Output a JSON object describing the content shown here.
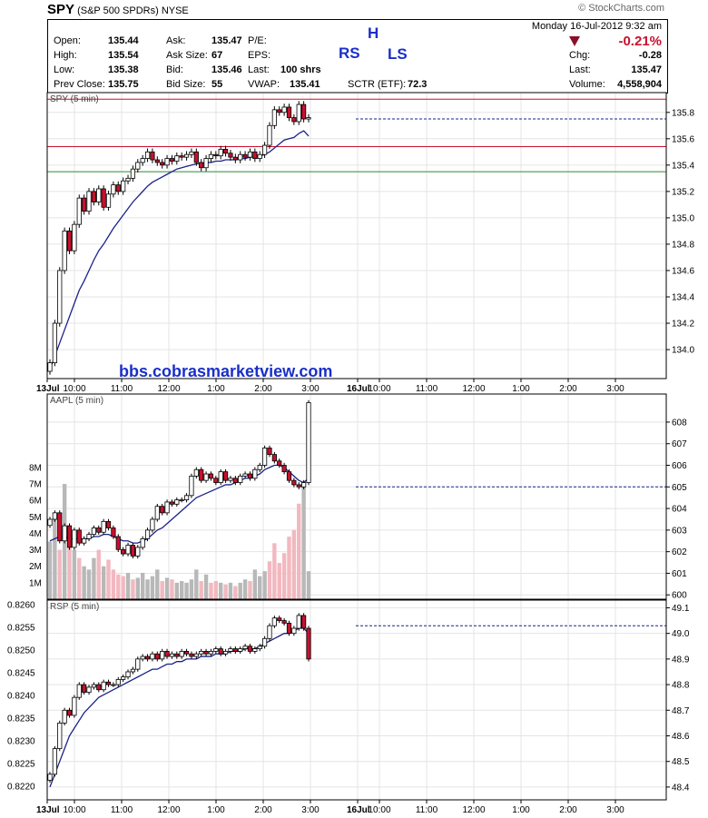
{
  "header": {
    "symbol": "SPY",
    "name": "(S&P 500 SPDRs)",
    "exchange": "NYSE",
    "brand": "© StockCharts.com"
  },
  "quote": {
    "open_label": "Open:",
    "open": "135.44",
    "high_label": "High:",
    "high": "135.54",
    "low_label": "Low:",
    "low": "135.38",
    "prev_label": "Prev Close:",
    "prev": "135.75",
    "ask_label": "Ask:",
    "ask": "135.47",
    "asksize_label": "Ask Size:",
    "asksize": "67",
    "bid_label": "Bid:",
    "bid": "135.46",
    "bidsize_label": "Bid Size:",
    "bidsize": "55",
    "pe_label": "P/E:",
    "eps_label": "EPS:",
    "last_label": "Last:",
    "last_shrs": "100 shrs",
    "vwap_label": "VWAP:",
    "vwap": "135.41",
    "sctr_label": "SCTR (ETF):",
    "sctr": "72.3",
    "annot_rs": "RS",
    "annot_h": "H",
    "annot_ls": "LS",
    "date": "Monday  16-Jul-2012  9:32 am",
    "pct": "-0.21%",
    "chg_label": "Chg:",
    "chg": "-0.28",
    "last2_label": "Last:",
    "last2": "135.47",
    "volume_label": "Volume:",
    "volume": "4,558,904",
    "colors": {
      "up": "#ffffff",
      "down": "#c8102e",
      "annotation": "#1a2fc9",
      "ma": "#1a2288"
    }
  },
  "chart_data": [
    {
      "type": "candlestick",
      "title": "SPY (5 min)",
      "watermark": "bbs.cobrasmarketview.com",
      "ylim": [
        133.78,
        135.95
      ],
      "yticks": [
        "135.8",
        "135.6",
        "135.4",
        "135.2",
        "135.0",
        "134.8",
        "134.6",
        "134.4",
        "134.2",
        "134.0"
      ],
      "xticks": [
        "13Jul",
        "10:00",
        "11:00",
        "12:00",
        "1:00",
        "2:00",
        "3:00",
        "16Jul",
        "10:00",
        "11:00",
        "12:00",
        "1:00",
        "2:00",
        "3:00"
      ],
      "hlines": [
        {
          "value": 135.9,
          "color": "#c8102e"
        },
        {
          "value": 135.54,
          "color": "#c8102e"
        },
        {
          "value": 135.35,
          "color": "#2e8b2e"
        }
      ],
      "last_price_line": 135.75,
      "close": [
        133.9,
        134.2,
        134.6,
        134.9,
        134.75,
        134.95,
        135.15,
        135.05,
        135.2,
        135.12,
        135.22,
        135.08,
        135.18,
        135.25,
        135.2,
        135.28,
        135.3,
        135.37,
        135.42,
        135.45,
        135.5,
        135.44,
        135.42,
        135.4,
        135.45,
        135.43,
        135.47,
        135.46,
        135.48,
        135.5,
        135.42,
        135.38,
        135.45,
        135.48,
        135.47,
        135.52,
        135.49,
        135.46,
        135.44,
        135.48,
        135.46,
        135.5,
        135.45,
        135.48,
        135.55,
        135.7,
        135.82,
        135.8,
        135.84,
        135.76,
        135.73,
        135.86,
        135.75,
        135.76
      ],
      "ma": [
        133.85,
        133.95,
        134.05,
        134.15,
        134.25,
        134.35,
        134.45,
        134.52,
        134.6,
        134.68,
        134.75,
        134.8,
        134.86,
        134.92,
        134.97,
        135.02,
        135.07,
        135.12,
        135.16,
        135.2,
        135.24,
        135.27,
        135.29,
        135.31,
        135.33,
        135.35,
        135.37,
        135.38,
        135.39,
        135.4,
        135.41,
        135.41,
        135.42,
        135.42,
        135.43,
        135.43,
        135.44,
        135.44,
        135.44,
        135.45,
        135.45,
        135.46,
        135.46,
        135.47,
        135.48,
        135.5,
        135.53,
        135.56,
        135.59,
        135.6,
        135.61,
        135.64,
        135.66,
        135.62
      ]
    },
    {
      "type": "candlestick",
      "title": "AAPL (5 min)",
      "ylim": [
        599.8,
        609.3
      ],
      "yticks": [
        "608",
        "607",
        "606",
        "605",
        "604",
        "603",
        "602",
        "601",
        "600"
      ],
      "voltick_labels": [
        "8M",
        "7M",
        "6M",
        "5M",
        "4M",
        "3M",
        "2M",
        "1M"
      ],
      "last_price_line": 605,
      "close": [
        603.5,
        603.8,
        602.5,
        603.2,
        602.2,
        603.0,
        602.4,
        602.6,
        602.8,
        603.1,
        602.9,
        603.4,
        603.1,
        602.7,
        602.1,
        601.9,
        602.3,
        601.8,
        602.2,
        602.6,
        603.0,
        603.5,
        604.1,
        603.8,
        604.3,
        604.2,
        604.4,
        604.4,
        604.6,
        605.5,
        605.8,
        605.3,
        605.6,
        605.4,
        605.2,
        605.7,
        605.3,
        605.4,
        605.2,
        605.5,
        605.6,
        605.4,
        605.8,
        606.0,
        606.8,
        606.5,
        606.2,
        606.0,
        605.7,
        605.3,
        605.1,
        605.0,
        605.2,
        608.9
      ],
      "ma": [
        602.5,
        602.6,
        602.7,
        602.7,
        602.6,
        602.6,
        602.6,
        602.6,
        602.6,
        602.7,
        602.7,
        602.8,
        602.8,
        602.7,
        602.6,
        602.5,
        602.5,
        602.4,
        602.4,
        602.5,
        602.6,
        602.8,
        603.0,
        603.1,
        603.3,
        603.5,
        603.7,
        603.9,
        604.1,
        604.3,
        604.5,
        604.6,
        604.7,
        604.8,
        604.9,
        605.0,
        605.1,
        605.1,
        605.2,
        605.3,
        605.4,
        605.4,
        605.5,
        605.6,
        605.8,
        605.9,
        606.0,
        606.0,
        605.9,
        605.7,
        605.5,
        605.3,
        605.2,
        605.4
      ],
      "volume": [
        3.5,
        5,
        3,
        7,
        4,
        3,
        2.5,
        2,
        1.8,
        2.5,
        3,
        2,
        2.4,
        1.8,
        1.5,
        1.4,
        1.6,
        1.2,
        1.3,
        1.6,
        1.2,
        1.4,
        1.8,
        1.1,
        1.3,
        1.2,
        1.0,
        1.1,
        1.0,
        1.2,
        1.8,
        1.1,
        1.5,
        1.0,
        1.1,
        1.0,
        0.9,
        1.0,
        0.8,
        1.0,
        1.2,
        1.1,
        1.8,
        1.4,
        1.7,
        2.3,
        3.4,
        2.2,
        2.8,
        3.8,
        4.2,
        5.8,
        6.8,
        1.7
      ]
    },
    {
      "type": "candlestick",
      "title": "RSP (5 min)",
      "ylim": [
        48.35,
        49.13
      ],
      "yticks": [
        "49.1",
        "49.0",
        "48.9",
        "48.8",
        "48.7",
        "48.6",
        "48.5",
        "48.4"
      ],
      "ratio_ticks": [
        "0.8260",
        "0.8255",
        "0.8250",
        "0.8245",
        "0.8240",
        "0.8235",
        "0.8230",
        "0.8225",
        "0.8220"
      ],
      "last_price_line": 49.03,
      "close": [
        48.45,
        48.55,
        48.65,
        48.7,
        48.68,
        48.75,
        48.8,
        48.77,
        48.79,
        48.8,
        48.78,
        48.81,
        48.8,
        48.8,
        48.82,
        48.83,
        48.85,
        48.86,
        48.9,
        48.91,
        48.9,
        48.92,
        48.9,
        48.93,
        48.91,
        48.92,
        48.91,
        48.93,
        48.92,
        48.91,
        48.92,
        48.93,
        48.92,
        48.93,
        48.94,
        48.92,
        48.93,
        48.94,
        48.93,
        48.94,
        48.95,
        48.93,
        48.94,
        48.95,
        48.98,
        49.03,
        49.06,
        49.05,
        49.04,
        49.0,
        49.02,
        49.07,
        49.02,
        48.9
      ],
      "ma": [
        48.4,
        48.45,
        48.5,
        48.55,
        48.6,
        48.63,
        48.66,
        48.69,
        48.71,
        48.73,
        48.75,
        48.76,
        48.77,
        48.78,
        48.79,
        48.8,
        48.81,
        48.82,
        48.83,
        48.84,
        48.85,
        48.86,
        48.86,
        48.87,
        48.88,
        48.88,
        48.89,
        48.89,
        48.9,
        48.9,
        48.9,
        48.91,
        48.91,
        48.91,
        48.92,
        48.92,
        48.92,
        48.93,
        48.93,
        48.93,
        48.94,
        48.94,
        48.94,
        48.95,
        48.96,
        48.97,
        48.98,
        48.99,
        49.0,
        49.0,
        49.01,
        49.02,
        49.02,
        49.0
      ]
    }
  ]
}
